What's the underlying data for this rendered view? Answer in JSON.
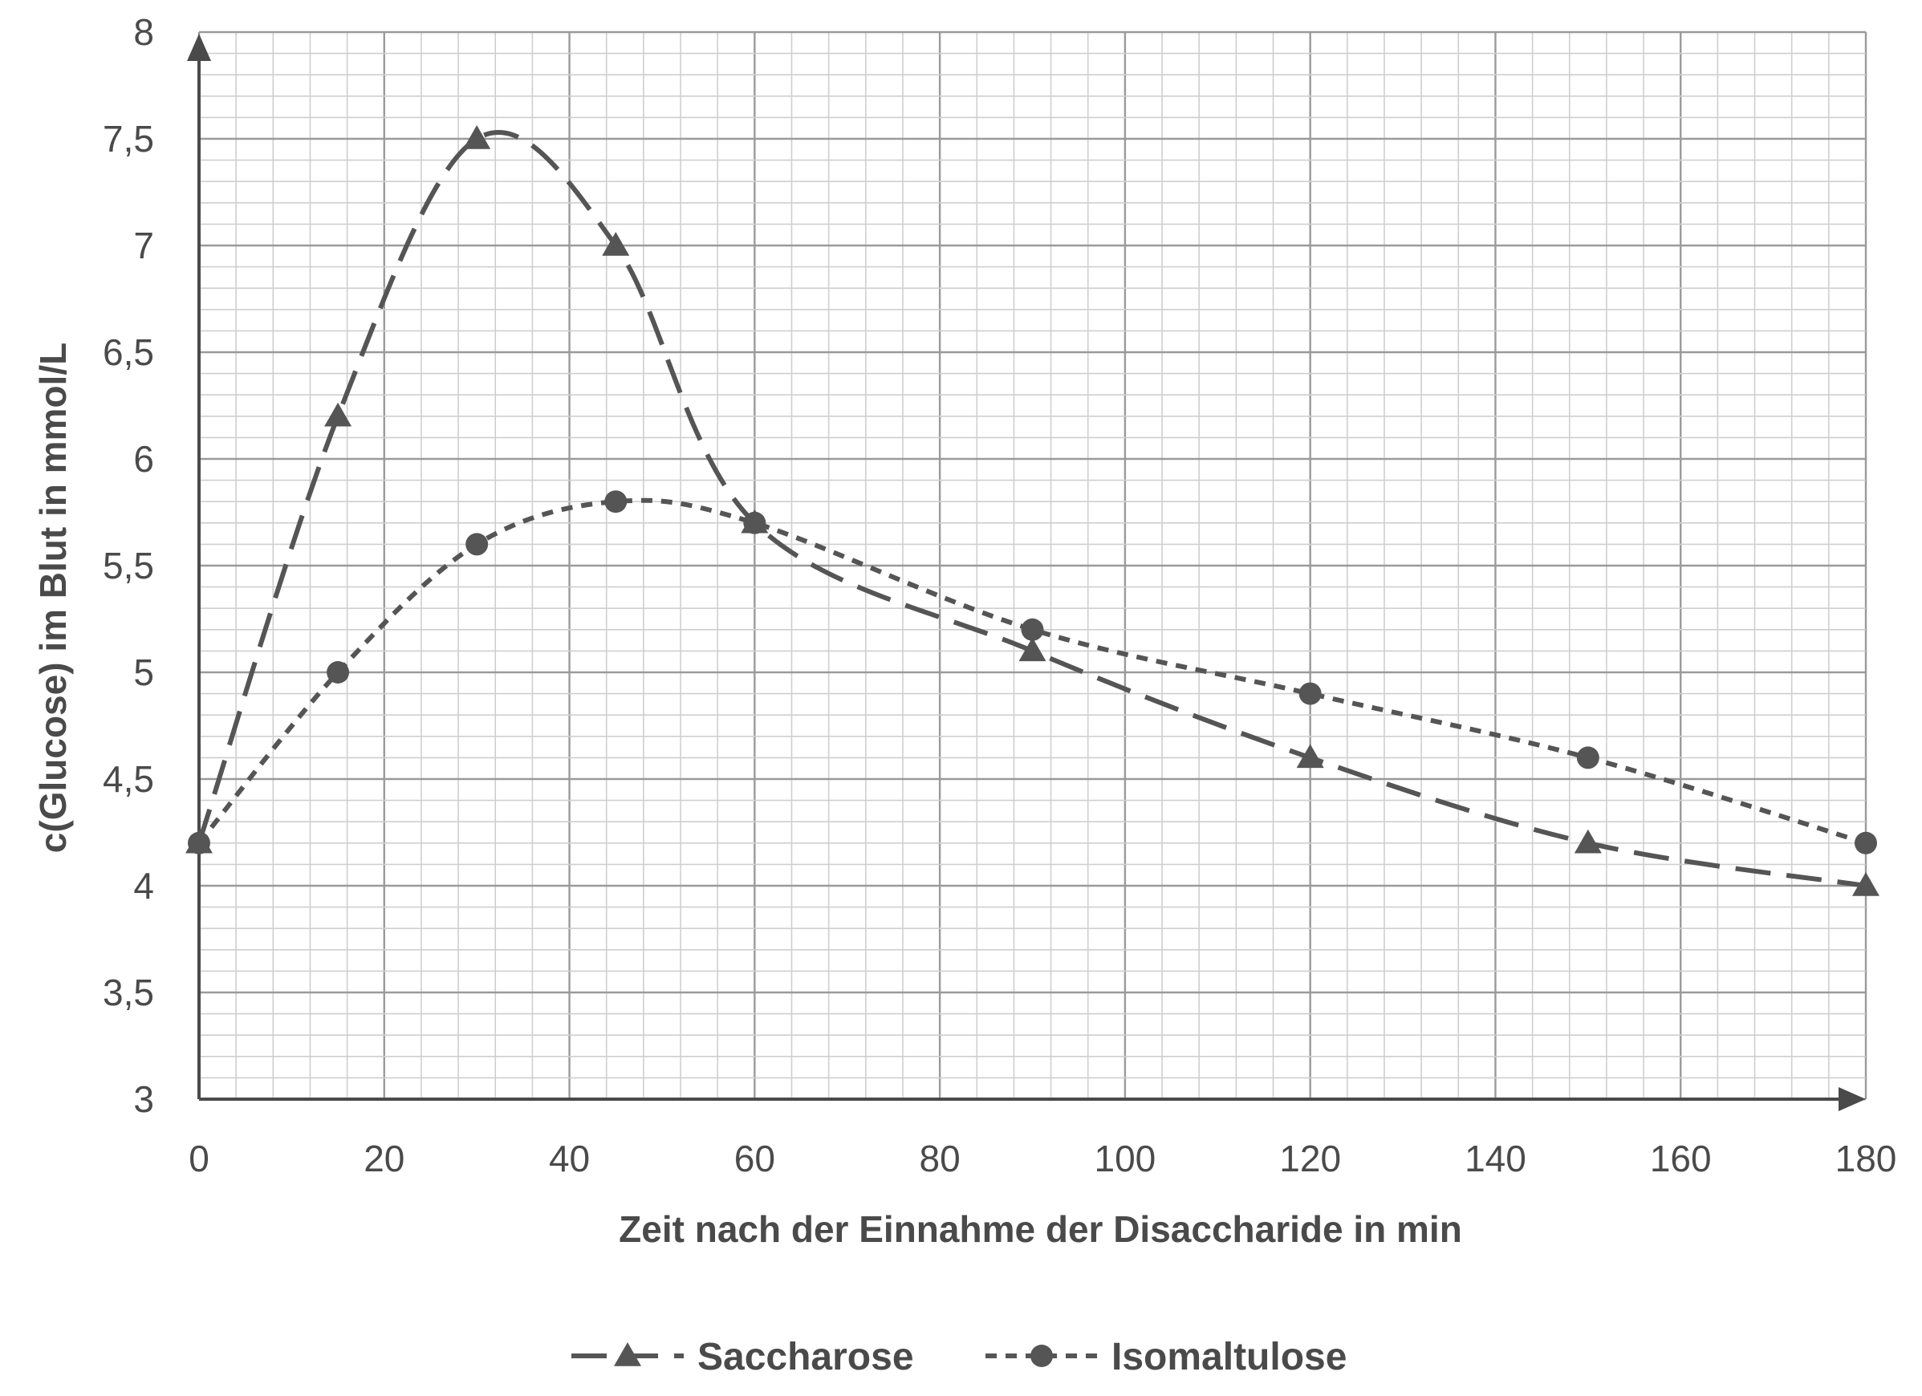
{
  "chart_data": {
    "type": "line",
    "title": "",
    "xlabel": "Zeit nach der Einnahme der Disaccharide in min",
    "ylabel": "c(Glucose) im Blut in mmol/L",
    "xlim": [
      0,
      180
    ],
    "ylim": [
      3,
      8
    ],
    "x_ticks": [
      "0",
      "20",
      "40",
      "60",
      "80",
      "100",
      "120",
      "140",
      "160",
      "180"
    ],
    "y_ticks": [
      "3",
      "3,5",
      "4",
      "4,5",
      "5",
      "5,5",
      "6",
      "6,5",
      "7",
      "7,5",
      "8"
    ],
    "grid": true,
    "legend_position": "bottom",
    "series": [
      {
        "name": "Saccharose",
        "marker": "triangle",
        "line_style": "long-dash",
        "color": "#555555",
        "x": [
          0,
          15,
          30,
          45,
          60,
          90,
          120,
          150,
          180
        ],
        "values": [
          4.2,
          6.2,
          7.5,
          7.0,
          5.7,
          5.1,
          4.6,
          4.2,
          4.0
        ]
      },
      {
        "name": "Isomaltulose",
        "marker": "circle",
        "line_style": "short-dash",
        "color": "#555555",
        "x": [
          0,
          15,
          30,
          45,
          60,
          90,
          120,
          150,
          180
        ],
        "values": [
          4.2,
          5.0,
          5.6,
          5.8,
          5.7,
          5.2,
          4.9,
          4.6,
          4.2
        ]
      }
    ]
  }
}
